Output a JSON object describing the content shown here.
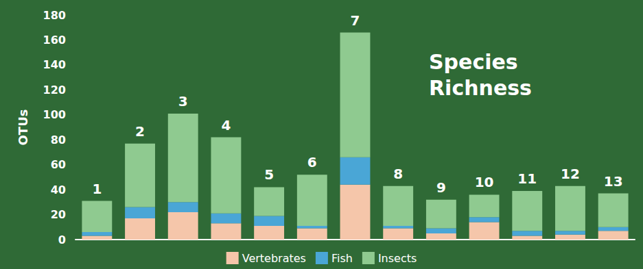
{
  "chart_data": {
    "type": "bar",
    "title": "Species Richness",
    "y_label": "OTUs",
    "categories": [
      "1",
      "2",
      "3",
      "4",
      "5",
      "6",
      "7",
      "8",
      "9",
      "10",
      "11",
      "12",
      "13"
    ],
    "series": [
      {
        "name": "Vertebrates",
        "color": "#f5c6aa",
        "values": [
          3,
          17,
          22,
          13,
          11,
          9,
          44,
          9,
          5,
          14,
          3,
          4,
          7
        ]
      },
      {
        "name": "Fish",
        "color": "#4aa6d6",
        "values": [
          3,
          9,
          8,
          8,
          8,
          2,
          22,
          2,
          4,
          4,
          4,
          3,
          3
        ]
      },
      {
        "name": "Insects",
        "color": "#8fca90",
        "values": [
          25,
          51,
          71,
          61,
          23,
          41,
          100,
          32,
          23,
          18,
          32,
          36,
          27
        ]
      }
    ],
    "stacked": true,
    "ylim": [
      0,
      180
    ],
    "yticks": [
      0,
      20,
      40,
      60,
      80,
      100,
      120,
      140,
      160,
      180
    ],
    "grid": false,
    "legend": "bottom",
    "tick_labels": "y"
  }
}
